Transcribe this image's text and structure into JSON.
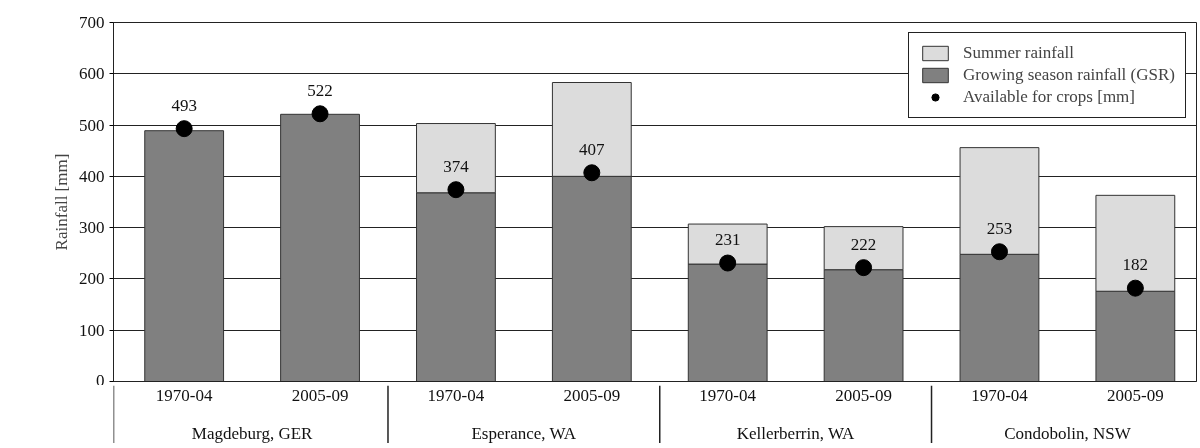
{
  "chart_data": {
    "type": "bar",
    "ylabel": "Rainfall [mm]",
    "categories": [
      "1970-04",
      "2005-09",
      "1970-04",
      "2005-09",
      "1970-04",
      "2005-09",
      "1970-04",
      "2005-09"
    ],
    "stacked": true,
    "series": [
      {
        "name": "Growing season rainfall (GSR)",
        "color": "#808080",
        "values": [
          489,
          521,
          368,
          400,
          229,
          218,
          248,
          176
        ]
      },
      {
        "name": "Summer rainfall",
        "color": "#dcdcdc",
        "values": [
          null,
          null,
          135,
          183,
          78,
          84,
          208,
          187
        ]
      },
      {
        "name": "Available for crops [mm]",
        "type": "scatter",
        "color": "#000000",
        "values": [
          493,
          522,
          374,
          407,
          231,
          222,
          253,
          182
        ],
        "data_labels": true
      }
    ],
    "ylim": [
      0,
      700
    ],
    "yticks": [
      0,
      100,
      200,
      300,
      400,
      500,
      600,
      700
    ],
    "grid": "y",
    "legend": "top right",
    "marker": "circle",
    "annotations": [
      "Magdeburg, GER",
      "Esperance, WA",
      "Kellerberrin, WA",
      "Condobolin, NSW"
    ]
  }
}
